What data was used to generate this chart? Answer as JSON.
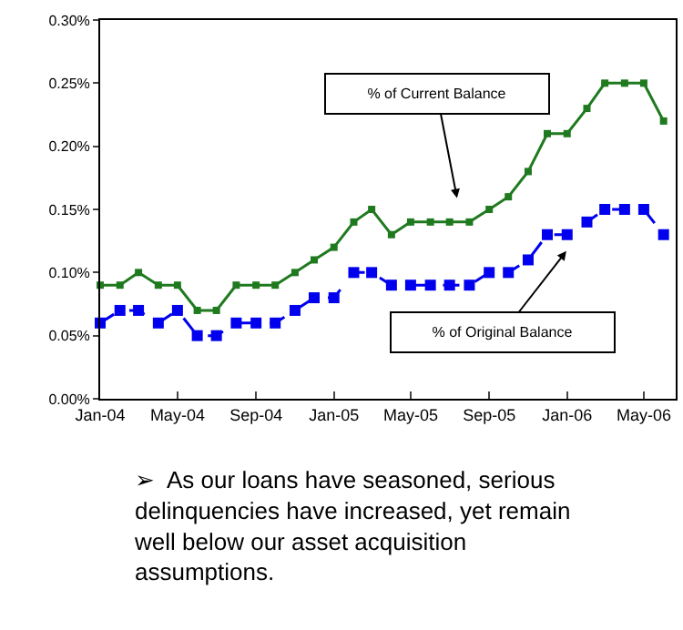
{
  "chart_data": {
    "type": "line",
    "x": [
      "2004-01",
      "2004-02",
      "2004-03",
      "2004-04",
      "2004-05",
      "2004-06",
      "2004-07",
      "2004-08",
      "2004-09",
      "2004-10",
      "2004-11",
      "2004-12",
      "2005-01",
      "2005-02",
      "2005-03",
      "2005-04",
      "2005-05",
      "2005-06",
      "2005-07",
      "2005-08",
      "2005-09",
      "2005-10",
      "2005-11",
      "2005-12",
      "2006-01",
      "2006-02",
      "2006-03",
      "2006-04",
      "2006-05",
      "2006-06"
    ],
    "series": [
      {
        "color": "#1f7a1f",
        "line_style": "solid",
        "values": [
          0.09,
          0.09,
          0.1,
          0.09,
          0.09,
          0.07,
          0.07,
          0.09,
          0.09,
          0.09,
          0.1,
          0.11,
          0.12,
          0.14,
          0.15,
          0.13,
          0.14,
          0.14,
          0.14,
          0.14,
          0.15,
          0.16,
          0.18,
          0.21,
          0.21,
          0.23,
          0.25,
          0.25,
          0.25,
          0.22
        ]
      },
      {
        "color": "#0000ee",
        "line_style": "dashed",
        "values": [
          0.06,
          0.07,
          0.07,
          0.06,
          0.07,
          0.05,
          0.05,
          0.06,
          0.06,
          0.06,
          0.07,
          0.08,
          0.08,
          0.1,
          0.1,
          0.09,
          0.09,
          0.09,
          0.09,
          0.09,
          0.1,
          0.1,
          0.11,
          0.13,
          0.13,
          0.14,
          0.15,
          0.15,
          0.15,
          0.13
        ]
      }
    ],
    "marker": "square",
    "xlim": [
      "2004-01-01",
      "2006-06-20"
    ],
    "xticks": [
      {
        "value": "2004-01",
        "label": "Jan-04"
      },
      {
        "value": "2004-05",
        "label": "May-04"
      },
      {
        "value": "2004-09",
        "label": "Sep-04"
      },
      {
        "value": "2005-01",
        "label": "Jan-05"
      },
      {
        "value": "2005-05",
        "label": "May-05"
      },
      {
        "value": "2005-09",
        "label": "Sep-05"
      },
      {
        "value": "2006-01",
        "label": "Jan-06"
      },
      {
        "value": "2006-05",
        "label": "May-06"
      }
    ],
    "ylim": [
      0,
      0.3
    ],
    "yticks": [
      {
        "value": 0,
        "label": "0.00%"
      },
      {
        "value": 0.05,
        "label": "0.05%"
      },
      {
        "value": 0.1,
        "label": "0.10%"
      },
      {
        "value": 0.15,
        "label": "0.15%"
      },
      {
        "value": 0.2,
        "label": "0.20%"
      },
      {
        "value": 0.25,
        "label": "0.25%"
      },
      {
        "value": 0.3,
        "label": "0.30%"
      }
    ],
    "annotations": [
      "% of Current Balance",
      "% of Original Balance",
      "➢  As our loans have seasoned, serious delinquencies have increased, yet remain well below our asset acquisition assumptions."
    ]
  }
}
